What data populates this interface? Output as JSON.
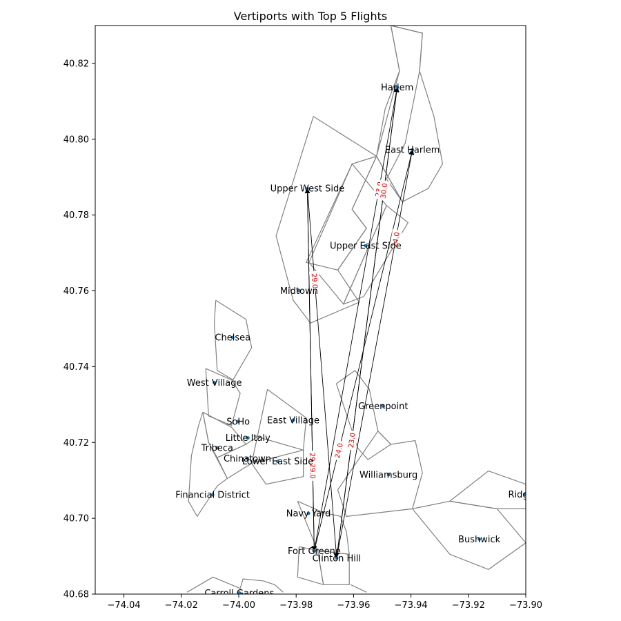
{
  "title": "Vertiports with Top 5 Flights",
  "axes": {
    "xlim": [
      -74.05,
      -73.9
    ],
    "ylim": [
      40.68,
      40.83
    ],
    "xticks": [
      -74.04,
      -74.02,
      -74.0,
      -73.98,
      -73.96,
      -73.94,
      -73.92,
      -73.9
    ],
    "yticks": [
      40.68,
      40.7,
      40.72,
      40.74,
      40.76,
      40.78,
      40.8,
      40.82
    ],
    "xtick_labels": [
      "−74.04",
      "−74.02",
      "−74.00",
      "−73.98",
      "−73.96",
      "−73.94",
      "−73.92",
      "−73.90"
    ],
    "ytick_labels": [
      "40.68",
      "40.70",
      "40.72",
      "40.74",
      "40.76",
      "40.78",
      "40.80",
      "40.82"
    ]
  },
  "map": {
    "boundary_color": "#808080",
    "boundaries": [
      [
        [
          -73.987,
          40.7745
        ],
        [
          -73.974,
          40.806
        ],
        [
          -73.952,
          40.7955
        ],
        [
          -73.9605,
          40.7815
        ],
        [
          -73.9555,
          40.7765
        ],
        [
          -73.9655,
          40.7655
        ],
        [
          -73.958,
          40.757
        ],
        [
          -73.975,
          40.7515
        ],
        [
          -73.981,
          40.7575
        ],
        [
          -73.987,
          40.7745
        ]
      ],
      [
        [
          -73.952,
          40.7955
        ],
        [
          -73.9605,
          40.7815
        ],
        [
          -73.9555,
          40.7765
        ],
        [
          -73.9655,
          40.7655
        ],
        [
          -73.9765,
          40.7675
        ],
        [
          -73.9605,
          40.7935
        ],
        [
          -73.952,
          40.7955
        ]
      ],
      [
        [
          -73.9605,
          40.7935
        ],
        [
          -73.9755,
          40.7675
        ],
        [
          -73.9635,
          40.7565
        ],
        [
          -73.9485,
          40.7825
        ],
        [
          -73.9605,
          40.7935
        ]
      ],
      [
        [
          -73.9635,
          40.7565
        ],
        [
          -73.9565,
          40.7585
        ],
        [
          -73.941,
          40.778
        ],
        [
          -73.9485,
          40.7825
        ],
        [
          -73.9635,
          40.7565
        ]
      ],
      [
        [
          -73.952,
          40.7955
        ],
        [
          -73.949,
          40.808
        ],
        [
          -73.944,
          40.818
        ],
        [
          -73.947,
          40.83
        ],
        [
          -73.936,
          40.828
        ],
        [
          -73.937,
          40.818
        ],
        [
          -73.932,
          40.806
        ],
        [
          -73.929,
          40.7935
        ],
        [
          -73.934,
          40.787
        ],
        [
          -73.943,
          40.7835
        ],
        [
          -73.952,
          40.7955
        ]
      ],
      [
        [
          -73.943,
          40.7835
        ],
        [
          -73.9485,
          40.7895
        ],
        [
          -73.942,
          40.799
        ],
        [
          -73.937,
          40.818
        ],
        [
          -73.936,
          40.828
        ],
        [
          -73.947,
          40.83
        ],
        [
          -73.944,
          40.818
        ],
        [
          -73.952,
          40.7955
        ],
        [
          -73.943,
          40.7835
        ]
      ],
      [
        [
          -74.008,
          40.7575
        ],
        [
          -73.9975,
          40.7525
        ],
        [
          -73.9955,
          40.745
        ],
        [
          -74.002,
          40.7365
        ],
        [
          -74.0075,
          40.739
        ],
        [
          -74.0085,
          40.7515
        ],
        [
          -74.008,
          40.7575
        ]
      ],
      [
        [
          -74.0115,
          40.7395
        ],
        [
          -74.0105,
          40.727
        ],
        [
          -74.0025,
          40.7245
        ],
        [
          -73.9995,
          40.733
        ],
        [
          -74.0025,
          40.7365
        ],
        [
          -74.0115,
          40.7395
        ]
      ],
      [
        [
          -73.99,
          40.734
        ],
        [
          -73.9765,
          40.7265
        ],
        [
          -73.9775,
          40.718
        ],
        [
          -73.9935,
          40.7215
        ],
        [
          -73.99,
          40.734
        ]
      ],
      [
        [
          -74.0125,
          40.728
        ],
        [
          -74.0025,
          40.724
        ],
        [
          -73.9975,
          40.7195
        ],
        [
          -74.0075,
          40.716
        ],
        [
          -74.0105,
          40.72
        ],
        [
          -74.0125,
          40.728
        ]
      ],
      [
        [
          -74.0075,
          40.716
        ],
        [
          -73.9975,
          40.7195
        ],
        [
          -73.9935,
          40.7215
        ],
        [
          -73.9955,
          40.7145
        ],
        [
          -74.004,
          40.7105
        ],
        [
          -74.0075,
          40.716
        ]
      ],
      [
        [
          -73.9955,
          40.7145
        ],
        [
          -73.9775,
          40.718
        ],
        [
          -73.9775,
          40.711
        ],
        [
          -73.9905,
          40.709
        ],
        [
          -73.9955,
          40.7145
        ]
      ],
      [
        [
          -74.014,
          40.7245
        ],
        [
          -74.0125,
          40.728
        ],
        [
          -74.0105,
          40.72
        ],
        [
          -74.004,
          40.7105
        ],
        [
          -74.0075,
          40.7085
        ],
        [
          -74.0145,
          40.7005
        ],
        [
          -74.0175,
          40.7045
        ],
        [
          -74.0165,
          40.7165
        ],
        [
          -74.014,
          40.7245
        ]
      ],
      [
        [
          -73.966,
          40.7355
        ],
        [
          -73.9595,
          40.739
        ],
        [
          -73.9545,
          40.734
        ],
        [
          -73.9515,
          40.723
        ],
        [
          -73.947,
          40.7195
        ],
        [
          -73.955,
          40.7155
        ],
        [
          -73.9585,
          40.7185
        ],
        [
          -73.966,
          40.7355
        ]
      ],
      [
        [
          -73.9515,
          40.723
        ],
        [
          -73.947,
          40.7195
        ],
        [
          -73.9385,
          40.7205
        ],
        [
          -73.936,
          40.712
        ],
        [
          -73.9395,
          40.7025
        ],
        [
          -73.9625,
          40.7005
        ],
        [
          -73.9655,
          40.7075
        ],
        [
          -73.9515,
          40.723
        ]
      ],
      [
        [
          -73.9795,
          40.7045
        ],
        [
          -73.9705,
          40.7015
        ],
        [
          -73.9645,
          40.7005
        ],
        [
          -73.9625,
          40.6965
        ],
        [
          -73.9615,
          40.6905
        ],
        [
          -73.9725,
          40.6915
        ],
        [
          -73.9795,
          40.7045
        ]
      ],
      [
        [
          -73.979,
          40.6925
        ],
        [
          -73.9725,
          40.6915
        ],
        [
          -73.9705,
          40.6825
        ],
        [
          -73.9795,
          40.6845
        ],
        [
          -73.979,
          40.6925
        ]
      ],
      [
        [
          -73.9725,
          40.6915
        ],
        [
          -73.9615,
          40.6905
        ],
        [
          -73.9615,
          40.6825
        ],
        [
          -73.9705,
          40.6825
        ],
        [
          -73.9725,
          40.6915
        ]
      ],
      [
        [
          -73.9395,
          40.7025
        ],
        [
          -73.9265,
          40.7045
        ],
        [
          -73.91,
          40.7025
        ],
        [
          -73.9,
          40.6935
        ],
        [
          -73.913,
          40.6865
        ],
        [
          -73.9265,
          40.6905
        ],
        [
          -73.9395,
          40.7025
        ]
      ],
      [
        [
          -73.9265,
          40.7045
        ],
        [
          -73.913,
          40.7125
        ],
        [
          -73.9,
          40.709
        ],
        [
          -73.9,
          40.7025
        ],
        [
          -73.91,
          40.7025
        ],
        [
          -73.9265,
          40.7045
        ]
      ],
      [
        [
          -74.018,
          40.6805
        ],
        [
          -74.009,
          40.6845
        ],
        [
          -73.9995,
          40.6815
        ],
        [
          -73.9985,
          40.684
        ],
        [
          -73.9915,
          40.6835
        ],
        [
          -73.9875,
          40.6825
        ],
        [
          -73.9845,
          40.6805
        ]
      ],
      [
        [
          -73.961,
          40.6825
        ],
        [
          -73.9555,
          40.6805
        ]
      ]
    ]
  },
  "vertiports": [
    {
      "name": "Harlem",
      "lon": -73.9448,
      "lat": 40.8137
    },
    {
      "name": "East Harlem",
      "lon": -73.9395,
      "lat": 40.7972
    },
    {
      "name": "Upper West Side",
      "lon": -73.9761,
      "lat": 40.787
    },
    {
      "name": "Upper East Side",
      "lon": -73.9558,
      "lat": 40.7719
    },
    {
      "name": "Midtown",
      "lon": -73.979,
      "lat": 40.76
    },
    {
      "name": "Chelsea",
      "lon": -74.0021,
      "lat": 40.7477
    },
    {
      "name": "West Village",
      "lon": -74.0085,
      "lat": 40.7358
    },
    {
      "name": "Greenpoint",
      "lon": -73.9497,
      "lat": 40.7296
    },
    {
      "name": "East Village",
      "lon": -73.981,
      "lat": 40.7259
    },
    {
      "name": "SoHo",
      "lon": -74.0002,
      "lat": 40.7255
    },
    {
      "name": "Little Italy",
      "lon": -73.9968,
      "lat": 40.7212
    },
    {
      "name": "Tribeca",
      "lon": -74.0075,
      "lat": 40.7186
    },
    {
      "name": "Chinatown",
      "lon": -73.997,
      "lat": 40.7158
    },
    {
      "name": "Lower East Side",
      "lon": -73.9864,
      "lat": 40.715
    },
    {
      "name": "Williamsburg",
      "lon": -73.9478,
      "lat": 40.7115
    },
    {
      "name": "Financial District",
      "lon": -74.0091,
      "lat": 40.7062
    },
    {
      "name": "Ridgewood",
      "lon": -73.9004,
      "lat": 40.7063
    },
    {
      "name": "Navy Yard",
      "lon": -73.9757,
      "lat": 40.7013
    },
    {
      "name": "Bushwick",
      "lon": -73.9162,
      "lat": 40.6945
    },
    {
      "name": "Fort Greene",
      "lon": -73.9737,
      "lat": 40.6914
    },
    {
      "name": "Clinton Hill",
      "lon": -73.9659,
      "lat": 40.6895
    },
    {
      "name": "Carroll Gardens",
      "lon": -73.9998,
      "lat": 40.6803
    }
  ],
  "place_labels": [
    {
      "text": "Harlem"
    },
    {
      "text": "East Harlem"
    },
    {
      "text": "Upper West Side"
    },
    {
      "text": "Upper East Side"
    },
    {
      "text": "Midtown"
    },
    {
      "text": "Chelsea"
    },
    {
      "text": "West Village"
    },
    {
      "text": "Greenpoint"
    },
    {
      "text": "East Village"
    },
    {
      "text": "SoHo"
    },
    {
      "text": "Little Italy"
    },
    {
      "text": "Tribeca"
    },
    {
      "text": "Chinatown"
    },
    {
      "text": "Lower East Side"
    },
    {
      "text": "Williamsburg"
    },
    {
      "text": "Financial District"
    },
    {
      "text": "Ridgew"
    },
    {
      "text": "Navy Yard"
    },
    {
      "text": "Bushwick"
    },
    {
      "text": "Fort Greene"
    },
    {
      "text": "Clinton Hill"
    },
    {
      "text": "Carroll Gardens"
    }
  ],
  "flights": [
    {
      "from": "Clinton Hill",
      "to": "Harlem",
      "label": "23.0"
    },
    {
      "from": "Clinton Hill",
      "to": "East Harlem",
      "label": "24.0"
    },
    {
      "from": "Fort Greene",
      "to": "Upper West Side",
      "label": "29.0"
    },
    {
      "from": "Upper West Side",
      "to": "Fort Greene",
      "label": "29.0"
    },
    {
      "from": "Upper West Side",
      "to": "Clinton Hill",
      "label": "29.0"
    },
    {
      "from": "Fort Greene",
      "to": "Harlem",
      "label": "23.0"
    },
    {
      "from": "Fort Greene",
      "to": "East Harlem",
      "label": "24.0"
    },
    {
      "from": "Clinton Hill",
      "to": "Harlem",
      "label": "30.0"
    }
  ]
}
